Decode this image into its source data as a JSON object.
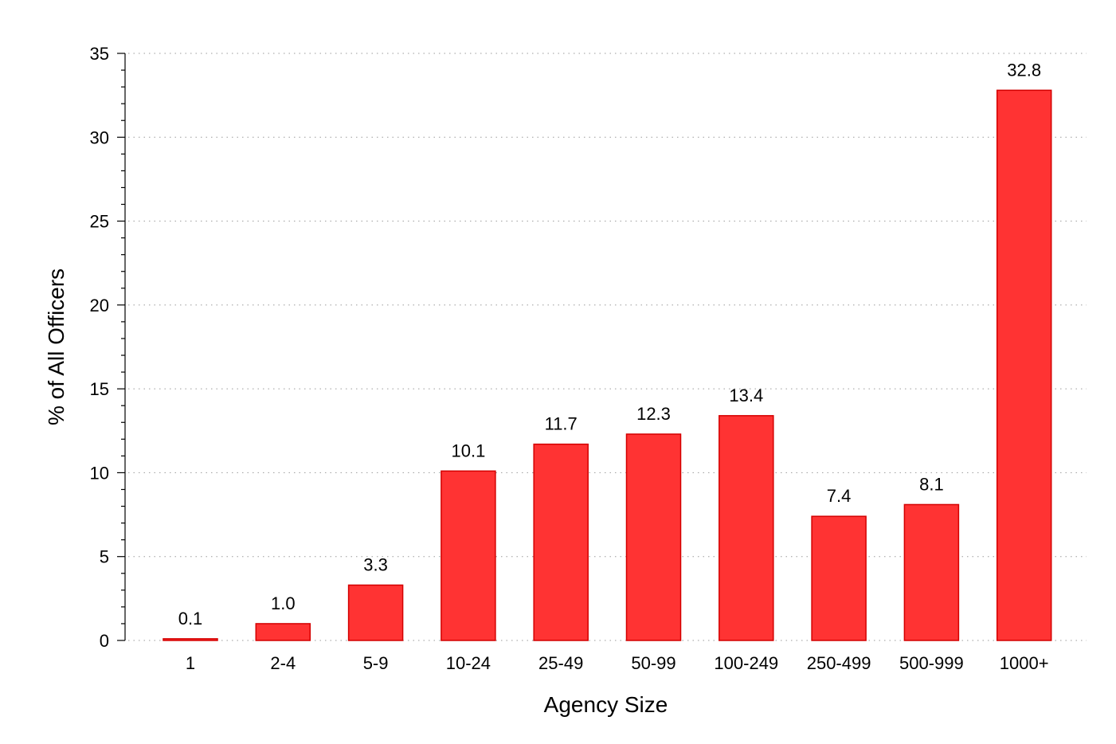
{
  "chart_data": {
    "type": "bar",
    "categories": [
      "1",
      "2-4",
      "5-9",
      "10-24",
      "25-49",
      "50-99",
      "100-249",
      "250-499",
      "500-999",
      "1000+"
    ],
    "values": [
      0.1,
      1.0,
      3.3,
      10.1,
      11.7,
      12.3,
      13.4,
      7.4,
      8.1,
      32.8
    ],
    "value_labels": [
      "0.1",
      "1.0",
      "3.3",
      "10.1",
      "11.7",
      "12.3",
      "13.4",
      "7.4",
      "8.1",
      "32.8"
    ],
    "title": "",
    "xlabel": "Agency Size",
    "ylabel": "% of All Officers",
    "ylim": [
      0,
      35
    ],
    "yticks": [
      0,
      5,
      10,
      15,
      20,
      25,
      30,
      35
    ],
    "grid": true,
    "bar_color": "#ff3333",
    "bar_edge_color": "#d40000"
  }
}
